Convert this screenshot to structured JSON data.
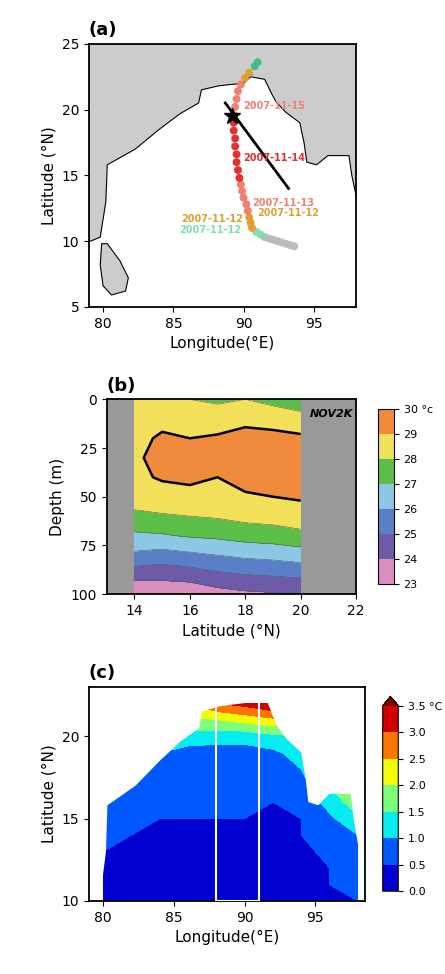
{
  "chart_data": [
    {
      "type": "map_track",
      "title": "(a)",
      "xlabel": "Longitude(°E)",
      "ylabel": "Latitude (°N)",
      "xlim": [
        79,
        98
      ],
      "ylim": [
        5,
        25
      ],
      "xticks": [
        80,
        85,
        90,
        95
      ],
      "yticks": [
        5,
        10,
        15,
        20,
        25
      ],
      "land": [
        [
          [
            78,
            9.5
          ],
          [
            79.8,
            10.3
          ],
          [
            80.2,
            13
          ],
          [
            80.3,
            15.8
          ],
          [
            81.3,
            16.4
          ],
          [
            82.3,
            17
          ],
          [
            84,
            18.5
          ],
          [
            85.5,
            19.7
          ],
          [
            86.8,
            20.5
          ],
          [
            87,
            21.5
          ],
          [
            88.2,
            21.8
          ],
          [
            89,
            21.9
          ],
          [
            90,
            22
          ],
          [
            90.5,
            22.5
          ],
          [
            91.5,
            22.3
          ],
          [
            92,
            21.2
          ],
          [
            92.3,
            20.6
          ],
          [
            93,
            19.8
          ],
          [
            94,
            19
          ],
          [
            94.3,
            17.5
          ],
          [
            94.5,
            16
          ],
          [
            95.2,
            15.8
          ],
          [
            96,
            16.5
          ],
          [
            97.5,
            16.5
          ],
          [
            97.7,
            15
          ],
          [
            98,
            13.5
          ],
          [
            98.6,
            10
          ],
          [
            99,
            26
          ],
          [
            78,
            26
          ]
        ],
        [
          [
            79.8,
            8.2
          ],
          [
            79.9,
            9.8
          ],
          [
            80.3,
            9.8
          ],
          [
            81.2,
            8.5
          ],
          [
            81.8,
            7.2
          ],
          [
            81.6,
            6.2
          ],
          [
            80.6,
            5.9
          ],
          [
            80.0,
            6.6
          ]
        ]
      ],
      "track": {
        "lon": [
          93.6,
          93.3,
          93.0,
          92.7,
          92.4,
          92.1,
          91.8,
          91.5,
          91.2,
          90.9,
          90.6,
          90.5,
          90.4,
          90.3,
          90.2,
          90.0,
          89.9,
          89.8,
          89.7,
          89.6,
          89.5,
          89.5,
          89.4,
          89.4,
          89.3,
          89.3,
          89.3,
          89.4,
          89.5,
          89.6,
          89.8,
          90.1,
          90.4,
          90.8,
          91.0
        ],
        "lat": [
          9.6,
          9.7,
          9.8,
          9.9,
          10.0,
          10.1,
          10.2,
          10.3,
          10.5,
          10.7,
          11.0,
          11.4,
          11.8,
          12.3,
          12.8,
          13.3,
          13.8,
          14.3,
          14.8,
          15.4,
          16.0,
          16.6,
          17.2,
          17.8,
          18.4,
          19.0,
          19.6,
          20.2,
          20.8,
          21.4,
          21.9,
          22.4,
          22.8,
          23.3,
          23.6
        ],
        "colors": [
          "#bbbbbb",
          "#bbbbbb",
          "#bbbbbb",
          "#bbbbbb",
          "#bbbbbb",
          "#bbbbbb",
          "#bbbbbb",
          "#bbbbbb",
          "#7fe0b0",
          "#7fe0b0",
          "#e0a030",
          "#e0a030",
          "#e0a030",
          "#f08070",
          "#f08070",
          "#f08070",
          "#f08070",
          "#f08070",
          "#e03030",
          "#e03030",
          "#e03030",
          "#e03030",
          "#e03030",
          "#e03030",
          "#e03030",
          "#e03030",
          "#f08070",
          "#f08070",
          "#f08070",
          "#f08070",
          "#f08070",
          "#e0a030",
          "#e0a030",
          "#40c080",
          "#40c080"
        ]
      },
      "star": [
        89.2,
        19.5
      ],
      "section_line": [
        [
          88.7,
          20.5
        ],
        [
          93.2,
          14
        ]
      ],
      "annotations": [
        {
          "text": "2007-11-15",
          "x": 90.0,
          "y": 20.3,
          "color": "#f08070",
          "align": "left"
        },
        {
          "text": "2007-11-14",
          "x": 90.0,
          "y": 16.3,
          "color": "#e03030",
          "align": "left"
        },
        {
          "text": "2007-11-13",
          "x": 90.6,
          "y": 12.9,
          "color": "#f08070",
          "align": "left"
        },
        {
          "text": "2007-11-12",
          "x": 91.0,
          "y": 12.1,
          "color": "#e0a030",
          "align": "left"
        },
        {
          "text": "2007-11-12",
          "x": 90.0,
          "y": 11.7,
          "color": "#e0a030",
          "align": "right"
        },
        {
          "text": "2007-11-12",
          "x": 89.8,
          "y": 10.85,
          "color": "#7fe0b0",
          "align": "right"
        }
      ]
    },
    {
      "type": "contour",
      "title": "(b)",
      "xlabel": "Latitude (°N)",
      "ylabel": "Depth (m)",
      "annotation": "NOV2K",
      "xlim": [
        13,
        22
      ],
      "ylim": [
        100,
        0
      ],
      "xticks": [
        14,
        16,
        18,
        20,
        22
      ],
      "yticks": [
        0,
        25,
        50,
        75,
        100
      ],
      "x": [
        14,
        15,
        16,
        17,
        18,
        19,
        20
      ],
      "y": [
        0,
        10,
        20,
        30,
        40,
        50,
        60,
        70,
        80,
        90,
        100
      ],
      "values": [
        [
          28.2,
          28.3,
          28.0,
          27.8,
          28.0,
          27.7,
          27.5
        ],
        [
          28.6,
          28.8,
          28.7,
          28.6,
          28.7,
          28.6,
          28.3
        ],
        [
          28.8,
          29.1,
          29.0,
          29.1,
          29.4,
          29.3,
          29.2
        ],
        [
          28.9,
          29.2,
          29.3,
          29.2,
          29.6,
          29.4,
          29.4
        ],
        [
          28.8,
          29.1,
          29.2,
          29.0,
          29.3,
          29.2,
          29.3
        ],
        [
          28.4,
          28.6,
          28.7,
          28.8,
          28.9,
          29.0,
          29.1
        ],
        [
          27.8,
          27.9,
          28.0,
          28.1,
          28.3,
          28.4,
          28.6
        ],
        [
          26.8,
          26.9,
          27.1,
          27.2,
          27.4,
          27.5,
          27.7
        ],
        [
          25.8,
          25.6,
          25.8,
          26.0,
          26.2,
          26.3,
          26.5
        ],
        [
          24.4,
          24.3,
          24.5,
          24.8,
          25.0,
          25.1,
          25.2
        ],
        [
          23.0,
          23.3,
          23.2,
          23.6,
          23.8,
          23.9,
          24.0
        ]
      ],
      "contour_line": 29,
      "colors": [
        "#d98fc0",
        "#6d5aa8",
        "#5a7fc8",
        "#8cc8e6",
        "#5cbf4a",
        "#f2e05a",
        "#f08a3c"
      ],
      "colorbar": {
        "range": [
          23,
          30
        ],
        "ticks": [
          23,
          24,
          25,
          26,
          27,
          28,
          29,
          {
            "value": 30,
            "label": "30 °c"
          }
        ]
      }
    },
    {
      "type": "map_field",
      "title": "(c)",
      "xlabel": "Longitude(°E)",
      "ylabel": "Latitude (°N)",
      "xlim": [
        79,
        98.5
      ],
      "ylim": [
        10,
        23
      ],
      "xticks": [
        80,
        85,
        90,
        95
      ],
      "yticks": [
        10,
        15,
        20
      ],
      "x": [
        80,
        82,
        84,
        86,
        88,
        90,
        92,
        94,
        96,
        98
      ],
      "y": [
        10,
        11,
        12,
        13,
        14,
        15,
        16,
        17,
        18,
        19,
        20,
        21,
        22
      ],
      "values": [
        [
          0.3,
          0.3,
          0.3,
          0.2,
          0.3,
          0.3,
          0.3,
          0.4,
          0.5,
          0.5
        ],
        [
          0.3,
          0.3,
          0.3,
          0.3,
          0.3,
          0.3,
          0.4,
          0.4,
          0.5,
          0.6
        ],
        [
          0.4,
          0.3,
          0.3,
          0.3,
          0.3,
          0.3,
          0.3,
          0.4,
          0.5,
          0.6
        ],
        [
          0.5,
          0.4,
          0.3,
          0.3,
          0.4,
          0.4,
          0.3,
          0.4,
          0.6,
          0.8
        ],
        [
          0.6,
          0.5,
          0.4,
          0.4,
          0.4,
          0.4,
          0.4,
          0.5,
          0.7,
          1.0
        ],
        [
          0.7,
          0.6,
          0.5,
          0.5,
          0.5,
          0.5,
          0.4,
          0.5,
          0.9,
          1.4
        ],
        [
          0.8,
          0.7,
          0.6,
          0.6,
          0.6,
          0.6,
          0.5,
          0.6,
          1.2,
          1.8
        ],
        [
          0.8,
          0.8,
          0.7,
          0.6,
          0.6,
          0.6,
          0.6,
          0.8,
          1.5,
          2.0
        ],
        [
          0.8,
          0.9,
          0.8,
          0.7,
          0.7,
          0.7,
          0.7,
          1.0,
          1.6,
          2.0
        ],
        [
          0.9,
          1.0,
          1.0,
          0.8,
          0.8,
          0.8,
          0.9,
          1.2,
          1.6,
          1.8
        ],
        [
          1.0,
          1.1,
          1.3,
          1.3,
          1.2,
          1.2,
          1.4,
          1.5,
          1.6,
          1.6
        ],
        [
          1.2,
          1.3,
          1.6,
          1.9,
          2.0,
          2.2,
          2.4,
          2.0,
          1.8,
          1.6
        ],
        [
          1.4,
          1.6,
          2.0,
          2.5,
          3.0,
          3.2,
          3.5,
          2.5,
          2.0,
          1.8
        ]
      ],
      "land": [
        [
          [
            78,
            9.5
          ],
          [
            79.8,
            10.3
          ],
          [
            80.2,
            13
          ],
          [
            80.3,
            15.8
          ],
          [
            81.3,
            16.4
          ],
          [
            82.3,
            17
          ],
          [
            84,
            18.5
          ],
          [
            85.5,
            19.7
          ],
          [
            86.8,
            20.5
          ],
          [
            87,
            21.5
          ],
          [
            88.2,
            21.8
          ],
          [
            89,
            21.9
          ],
          [
            90,
            22
          ],
          [
            90.5,
            22.5
          ],
          [
            91.5,
            22.3
          ],
          [
            92,
            21.2
          ],
          [
            92.3,
            20.6
          ],
          [
            93,
            19.8
          ],
          [
            94,
            19
          ],
          [
            94.3,
            17.5
          ],
          [
            94.5,
            16
          ],
          [
            95.2,
            15.8
          ],
          [
            96,
            16.5
          ],
          [
            97.5,
            16.5
          ],
          [
            97.7,
            15
          ],
          [
            98,
            13.5
          ],
          [
            98.6,
            10
          ],
          [
            99,
            26
          ],
          [
            78,
            26
          ]
        ]
      ],
      "box": {
        "lon": [
          88,
          91
        ],
        "lat": [
          10,
          22.5
        ]
      },
      "colorbar": {
        "range": [
          0.0,
          3.5
        ],
        "ticks": [
          0.0,
          0.5,
          1.0,
          1.5,
          2.0,
          2.5,
          3.0,
          {
            "value": 3.5,
            "label": "3.5 °C"
          }
        ]
      }
    }
  ]
}
